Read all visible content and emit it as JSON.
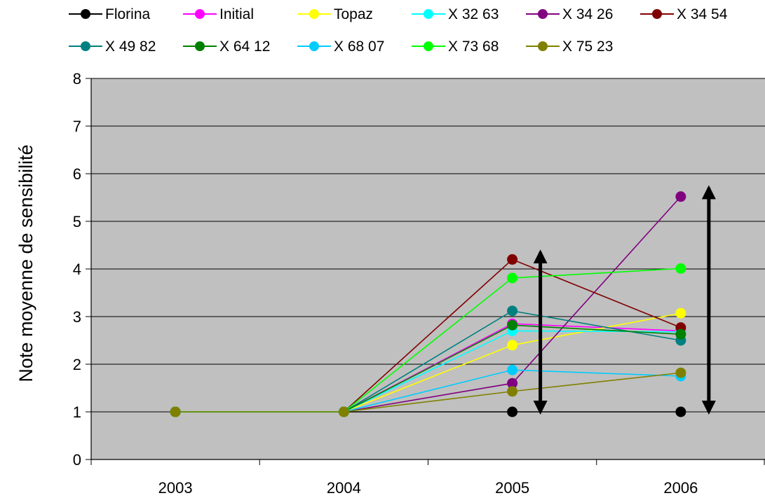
{
  "chart_data": {
    "type": "line",
    "title": "",
    "xlabel": "",
    "ylabel": "Note moyenne de sensibilité",
    "categories": [
      "2003",
      "2004",
      "2005",
      "2006"
    ],
    "ylim": [
      0,
      8
    ],
    "yticks": [
      "0",
      "1",
      "2",
      "3",
      "4",
      "5",
      "6",
      "7",
      "8"
    ],
    "grid": "horizontal",
    "legend_position": "top",
    "plot_background": "#c0c0c0",
    "series": [
      {
        "name": "Florina",
        "color": "#000000",
        "values": [
          1,
          1,
          1.0,
          1.0
        ]
      },
      {
        "name": "Initial",
        "color": "#ff00ff",
        "values": [
          1,
          1,
          2.85,
          2.7
        ]
      },
      {
        "name": "Topaz",
        "color": "#ffff00",
        "values": [
          1,
          1,
          2.4,
          3.07
        ]
      },
      {
        "name": "X 32 63",
        "color": "#00ffff",
        "values": [
          1,
          1,
          2.7,
          2.68
        ]
      },
      {
        "name": "X 34 26",
        "color": "#800080",
        "values": [
          1,
          1,
          1.6,
          5.52
        ]
      },
      {
        "name": "X 34 54",
        "color": "#800000",
        "values": [
          1,
          1,
          4.2,
          2.77
        ]
      },
      {
        "name": "X 49 82",
        "color": "#008080",
        "values": [
          1,
          1,
          3.12,
          2.5
        ]
      },
      {
        "name": "X 64 12",
        "color": "#008000",
        "values": [
          1,
          1,
          2.82,
          2.63
        ]
      },
      {
        "name": "X 68 07",
        "color": "#00ccff",
        "values": [
          1,
          1,
          1.88,
          1.75
        ]
      },
      {
        "name": "X 73 68",
        "color": "#00ff00",
        "values": [
          1,
          1,
          3.81,
          4.01
        ]
      },
      {
        "name": "X 75 23",
        "color": "#808000",
        "values": [
          1,
          1,
          1.43,
          1.82
        ]
      }
    ],
    "annotations": [
      {
        "type": "double-arrow",
        "x": "2005",
        "y_range": [
          1,
          4.35
        ]
      },
      {
        "type": "double-arrow",
        "x": "2006",
        "y_range": [
          1,
          5.7
        ]
      }
    ]
  }
}
